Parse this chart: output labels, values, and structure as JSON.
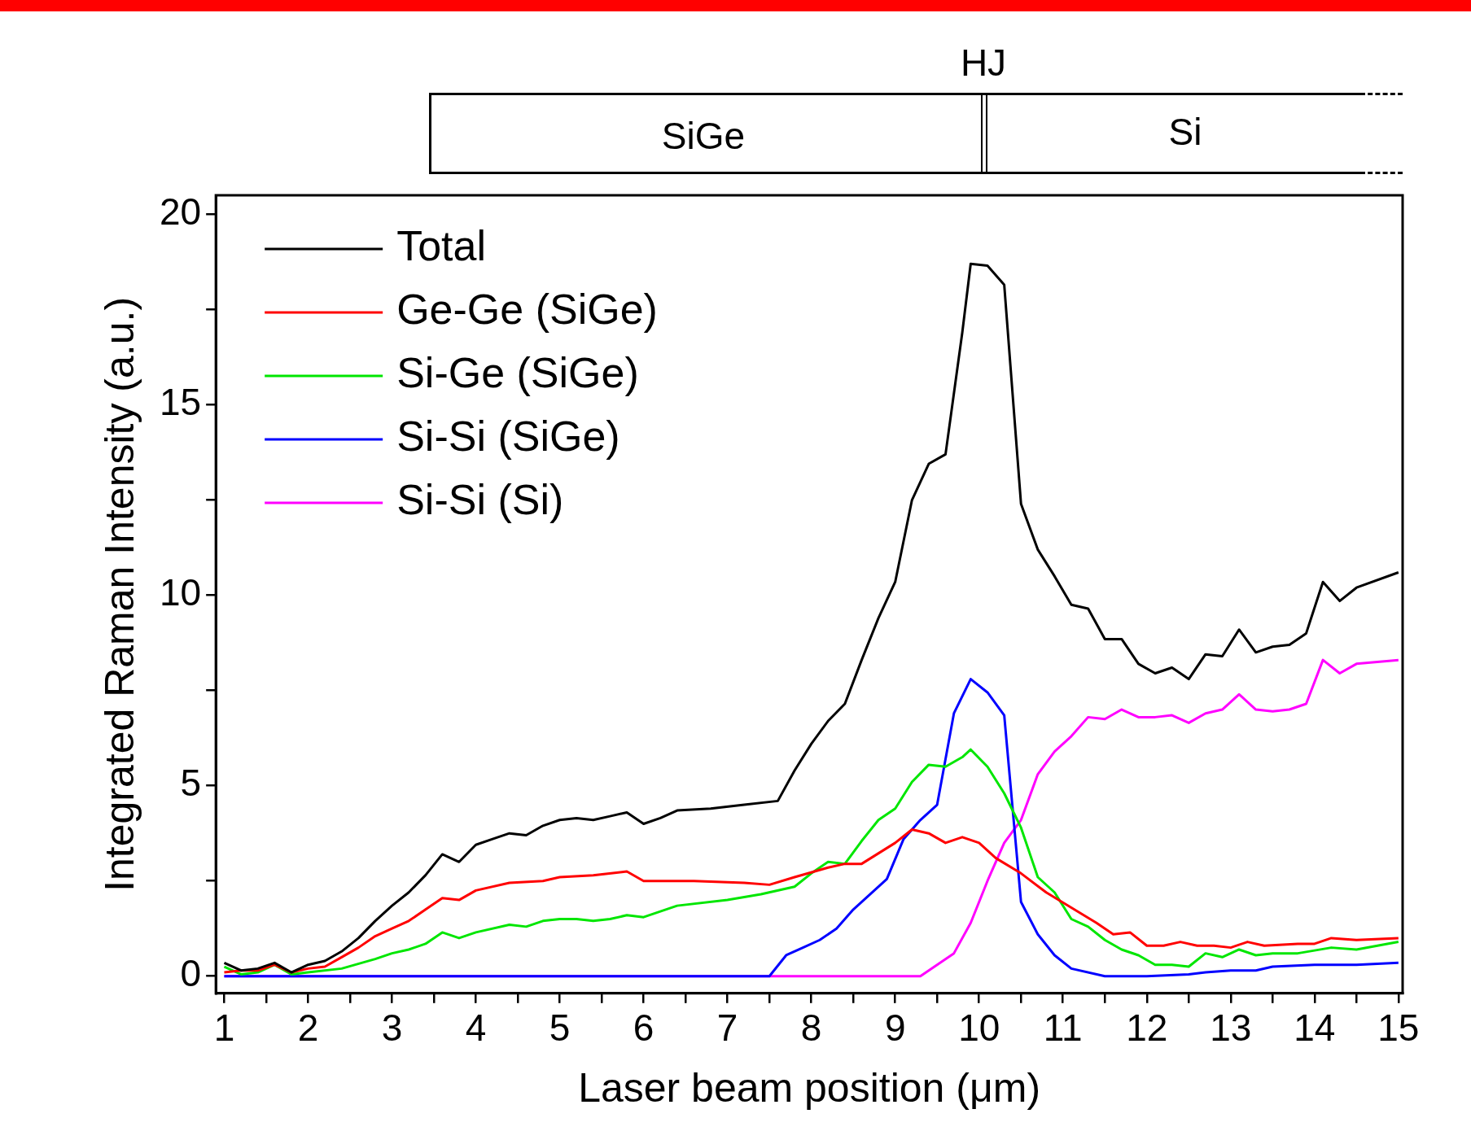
{
  "chart_data": {
    "type": "line",
    "xlabel": "Laser beam position (μm)",
    "ylabel": "Integrated Raman Intensity (a.u.)",
    "xlim": [
      0.9,
      15.05
    ],
    "ylim": [
      -0.45,
      20.5
    ],
    "xticks": [
      1,
      {
        "value": 1.5,
        "label": null
      },
      2,
      {
        "value": 2.5,
        "label": null
      },
      3,
      {
        "value": 3.5,
        "label": null
      },
      4,
      {
        "value": 4.5,
        "label": null
      },
      5,
      {
        "value": 5.5,
        "label": null
      },
      6,
      {
        "value": 6.5,
        "label": null
      },
      7,
      {
        "value": 7.5,
        "label": null
      },
      8,
      {
        "value": 8.5,
        "label": null
      },
      9,
      {
        "value": 9.5,
        "label": null
      },
      10,
      {
        "value": 10.5,
        "label": null
      },
      11,
      {
        "value": 11.5,
        "label": null
      },
      12,
      {
        "value": 12.5,
        "label": null
      },
      13,
      {
        "value": 13.5,
        "label": null
      },
      14,
      {
        "value": 14.5,
        "label": null
      },
      15
    ],
    "yticks": [
      0,
      {
        "value": 2.5,
        "label": null
      },
      5,
      {
        "value": 7.5,
        "label": null
      },
      10,
      {
        "value": 12.5,
        "label": null
      },
      15,
      {
        "value": 17.5,
        "label": null
      },
      20
    ],
    "grid": false,
    "legend": "top left",
    "marker": "none",
    "line_style": "solid",
    "annotations": [
      "SiGe",
      "HJ",
      "Si"
    ],
    "series": [
      {
        "name": "Total",
        "color": "#000000",
        "x": [
          1,
          1.2,
          1.4,
          1.6,
          1.8,
          2,
          2.2,
          2.4,
          2.6,
          2.8,
          3,
          3.2,
          3.4,
          3.6,
          3.8,
          4,
          4.2,
          4.4,
          4.6,
          4.8,
          5,
          5.2,
          5.4,
          5.6,
          5.8,
          6,
          6.2,
          6.4,
          6.8,
          7.2,
          7.6,
          7.8,
          8,
          8.2,
          8.4,
          8.6,
          8.8,
          9,
          9.2,
          9.4,
          9.6,
          9.8,
          9.9,
          10.1,
          10.3,
          10.5,
          10.7,
          10.9,
          11.1,
          11.3,
          11.5,
          11.7,
          11.9,
          12.1,
          12.3,
          12.5,
          12.7,
          12.9,
          13.1,
          13.3,
          13.5,
          13.7,
          13.9,
          14.1,
          14.3,
          14.5,
          15
        ],
        "values": [
          0.35,
          0.15,
          0.2,
          0.35,
          0.1,
          0.3,
          0.4,
          0.65,
          1.0,
          1.45,
          1.85,
          2.2,
          2.65,
          3.2,
          3.0,
          3.45,
          3.6,
          3.75,
          3.7,
          3.95,
          4.1,
          4.15,
          4.1,
          4.2,
          4.3,
          4.0,
          4.15,
          4.35,
          4.4,
          4.5,
          4.6,
          5.4,
          6.1,
          6.7,
          7.15,
          8.3,
          9.4,
          10.35,
          12.5,
          13.45,
          13.7,
          16.9,
          18.7,
          18.65,
          18.15,
          12.4,
          11.2,
          10.5,
          9.75,
          9.65,
          8.85,
          8.85,
          8.2,
          7.95,
          8.1,
          7.8,
          8.45,
          8.4,
          9.1,
          8.5,
          8.65,
          8.7,
          9.0,
          10.35,
          9.85,
          10.2,
          10.6
        ]
      },
      {
        "name": "Ge-Ge (SiGe)",
        "color": "#ff0000",
        "x": [
          1,
          1.2,
          1.4,
          1.6,
          1.8,
          2,
          2.2,
          2.4,
          2.6,
          2.8,
          3,
          3.2,
          3.4,
          3.6,
          3.8,
          4,
          4.4,
          4.8,
          5,
          5.4,
          5.8,
          6,
          6.6,
          7.2,
          7.5,
          7.8,
          8.2,
          8.4,
          8.6,
          9,
          9.2,
          9.4,
          9.6,
          9.8,
          10,
          10.2,
          10.5,
          10.8,
          11.1,
          11.4,
          11.6,
          11.8,
          12,
          12.2,
          12.4,
          12.6,
          12.8,
          13,
          13.2,
          13.4,
          13.8,
          14,
          14.2,
          14.5,
          15
        ],
        "values": [
          0.1,
          0.15,
          0.15,
          0.3,
          0.1,
          0.2,
          0.25,
          0.5,
          0.75,
          1.05,
          1.25,
          1.45,
          1.75,
          2.05,
          2.0,
          2.25,
          2.45,
          2.5,
          2.6,
          2.65,
          2.75,
          2.5,
          2.5,
          2.45,
          2.4,
          2.6,
          2.85,
          2.95,
          2.95,
          3.5,
          3.85,
          3.75,
          3.5,
          3.65,
          3.5,
          3.1,
          2.7,
          2.2,
          1.8,
          1.4,
          1.1,
          1.15,
          0.8,
          0.8,
          0.9,
          0.8,
          0.8,
          0.75,
          0.9,
          0.8,
          0.85,
          0.85,
          1.0,
          0.95,
          1.0
        ]
      },
      {
        "name": "Si-Ge (SiGe)",
        "color": "#00e600",
        "x": [
          1,
          1.2,
          1.4,
          1.6,
          1.8,
          2,
          2.4,
          2.8,
          3,
          3.2,
          3.4,
          3.6,
          3.8,
          4,
          4.4,
          4.6,
          4.8,
          5,
          5.2,
          5.4,
          5.6,
          5.8,
          6,
          6.4,
          7,
          7.4,
          7.8,
          8,
          8.2,
          8.4,
          8.6,
          8.8,
          9,
          9.2,
          9.4,
          9.6,
          9.8,
          9.9,
          10.1,
          10.3,
          10.5,
          10.7,
          10.9,
          11.1,
          11.3,
          11.5,
          11.7,
          11.9,
          12.1,
          12.3,
          12.5,
          12.7,
          12.9,
          13.1,
          13.3,
          13.5,
          13.8,
          14.2,
          14.5,
          15
        ],
        "values": [
          0.25,
          0.05,
          0.1,
          0.3,
          0.05,
          0.1,
          0.2,
          0.45,
          0.6,
          0.7,
          0.85,
          1.15,
          1.0,
          1.15,
          1.35,
          1.3,
          1.45,
          1.5,
          1.5,
          1.45,
          1.5,
          1.6,
          1.55,
          1.85,
          2.0,
          2.15,
          2.35,
          2.7,
          3.0,
          2.95,
          3.55,
          4.1,
          4.4,
          5.1,
          5.55,
          5.5,
          5.75,
          5.95,
          5.5,
          4.8,
          3.9,
          2.6,
          2.2,
          1.5,
          1.3,
          0.95,
          0.7,
          0.55,
          0.3,
          0.3,
          0.25,
          0.6,
          0.5,
          0.7,
          0.55,
          0.6,
          0.6,
          0.75,
          0.7,
          0.9
        ]
      },
      {
        "name": "Si-Si (SiGe)",
        "color": "#0000ff",
        "x": [
          1,
          7.5,
          7.7,
          7.9,
          8.1,
          8.3,
          8.5,
          8.7,
          8.9,
          9.1,
          9.3,
          9.5,
          9.7,
          9.9,
          10.1,
          10.3,
          10.5,
          10.7,
          10.9,
          11.1,
          11.5,
          12,
          12.5,
          12.7,
          13,
          13.3,
          13.5,
          14,
          14.5,
          15
        ],
        "values": [
          0,
          0,
          0.55,
          0.75,
          0.95,
          1.25,
          1.75,
          2.15,
          2.55,
          3.6,
          4.1,
          4.5,
          6.9,
          7.8,
          7.45,
          6.85,
          1.95,
          1.1,
          0.55,
          0.2,
          0,
          0,
          0.05,
          0.1,
          0.15,
          0.15,
          0.25,
          0.3,
          0.3,
          0.35
        ]
      },
      {
        "name": "Si-Si (Si)",
        "color": "#ff00ff",
        "x": [
          1,
          9.3,
          9.5,
          9.7,
          9.9,
          10.1,
          10.3,
          10.5,
          10.7,
          10.9,
          11.1,
          11.3,
          11.5,
          11.7,
          11.9,
          12.1,
          12.3,
          12.5,
          12.7,
          12.9,
          13.1,
          13.3,
          13.5,
          13.7,
          13.9,
          14.1,
          14.3,
          14.5,
          15
        ],
        "values": [
          0,
          0,
          0.3,
          0.6,
          1.4,
          2.5,
          3.5,
          4.1,
          5.3,
          5.9,
          6.3,
          6.8,
          6.75,
          7.0,
          6.8,
          6.8,
          6.85,
          6.65,
          6.9,
          7.0,
          7.4,
          7.0,
          6.95,
          7.0,
          7.15,
          8.3,
          7.95,
          8.2,
          8.3
        ]
      }
    ]
  }
}
